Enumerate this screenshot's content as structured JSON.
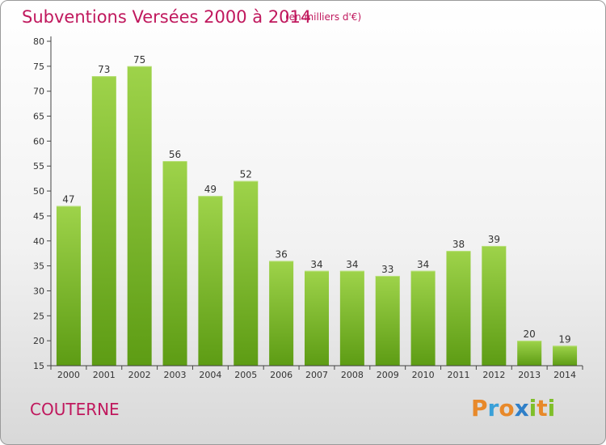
{
  "chart_data": {
    "type": "bar",
    "title": "Subventions Versées 2000 à 2014",
    "subtitle": "(en milliers d'€)",
    "categories": [
      "2000",
      "2001",
      "2002",
      "2003",
      "2004",
      "2005",
      "2006",
      "2007",
      "2008",
      "2009",
      "2010",
      "2011",
      "2012",
      "2013",
      "2014"
    ],
    "values": [
      47,
      73,
      75,
      56,
      49,
      52,
      36,
      34,
      34,
      33,
      34,
      38,
      39,
      20,
      19
    ],
    "ylim": [
      15,
      80
    ],
    "yticks": [
      15,
      20,
      25,
      30,
      35,
      40,
      45,
      50,
      55,
      60,
      65,
      70,
      75,
      80
    ],
    "grid": false,
    "bar_color": "#7ec02c",
    "xlabel": "",
    "ylabel": ""
  },
  "place_name": "COUTERNE",
  "logo": {
    "letters": [
      "P",
      "r",
      "o",
      "x",
      "i",
      "t",
      "i"
    ],
    "colors": [
      "#e8892a",
      "#3aa0d8",
      "#e8892a",
      "#2f7fc8",
      "#7fbf2a",
      "#e8892a",
      "#7fbf2a"
    ]
  },
  "colors": {
    "title": "#c0185d",
    "axis": "#444444"
  }
}
